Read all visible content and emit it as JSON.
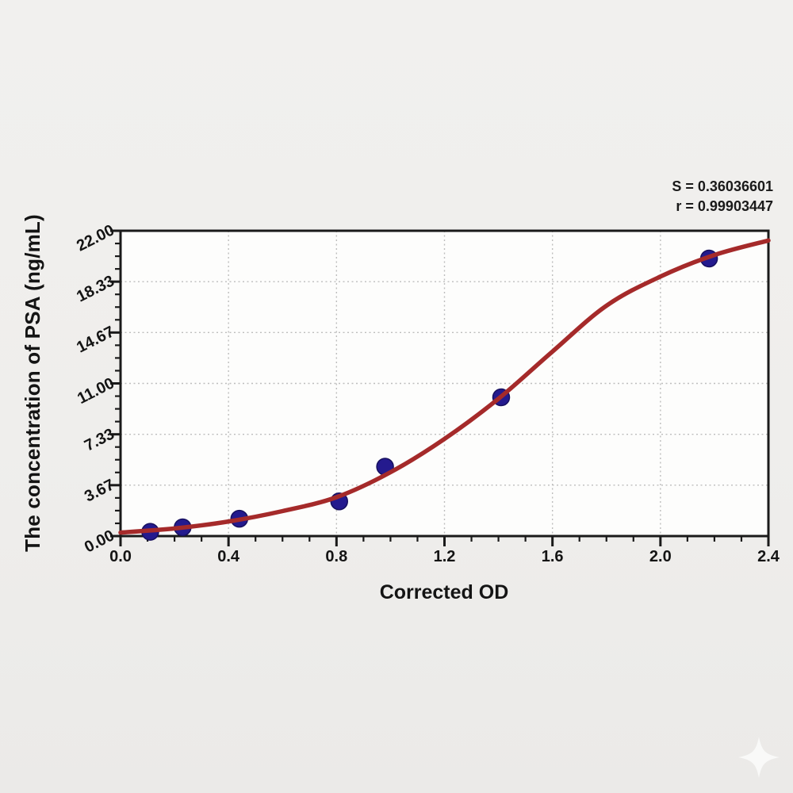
{
  "chart_data": {
    "type": "scatter",
    "title": "",
    "xlabel": "Corrected OD",
    "ylabel": "The concentration of PSA (ng/mL)",
    "xlim": [
      0,
      2.4
    ],
    "ylim": [
      0,
      22
    ],
    "x_ticks": {
      "values": [
        0,
        0.4,
        0.8,
        1.2,
        1.6,
        2.0,
        2.4
      ],
      "labels": [
        "0.0",
        "0.4",
        "0.8",
        "1.2",
        "1.6",
        "2.0",
        "2.4"
      ],
      "minor_step": 0.1
    },
    "y_ticks": {
      "values": [
        0,
        3.6667,
        7.3333,
        11,
        14.6667,
        18.3333,
        22
      ],
      "labels": [
        "0.00",
        "3.67",
        "7.33",
        "11.00",
        "14.67",
        "18.33",
        "22.00"
      ],
      "minors_per_interval": 3
    },
    "grid": {
      "show": true,
      "style": "dotted",
      "on": "major",
      "color": "#bdbdbd"
    },
    "legend": null,
    "series": [
      {
        "name": "standard-points",
        "type": "scatter",
        "color": "#241a8e",
        "edge_color": "#17105f",
        "x": [
          0.11,
          0.23,
          0.44,
          0.81,
          0.98,
          1.41,
          2.18
        ],
        "y": [
          0.31,
          0.63,
          1.25,
          2.5,
          5,
          10,
          20
        ]
      },
      {
        "name": "fit-curve",
        "type": "line",
        "color": "#a52a2a",
        "x": [
          0,
          0.2,
          0.4,
          0.6,
          0.8,
          1.0,
          1.2,
          1.4,
          1.6,
          1.8,
          2.0,
          2.2,
          2.4
        ],
        "y": [
          0.25,
          0.55,
          1.05,
          1.8,
          2.8,
          4.6,
          7.0,
          9.9,
          13.3,
          16.6,
          18.7,
          20.25,
          21.3
        ]
      }
    ],
    "annotations": [
      "S = 0.36036601",
      "r = 0.99903447"
    ]
  },
  "colors": {
    "page_background": "#efeeec",
    "plot_background": "#fdfdfc",
    "frame": "#1a1a1a",
    "grid": "#bdbdbd",
    "curve": "#a52a2a",
    "points": "#241a8e",
    "text": "#141414",
    "watermark": "#fafafa"
  },
  "watermark": {
    "icon_name": "sparkle-star-icon"
  }
}
